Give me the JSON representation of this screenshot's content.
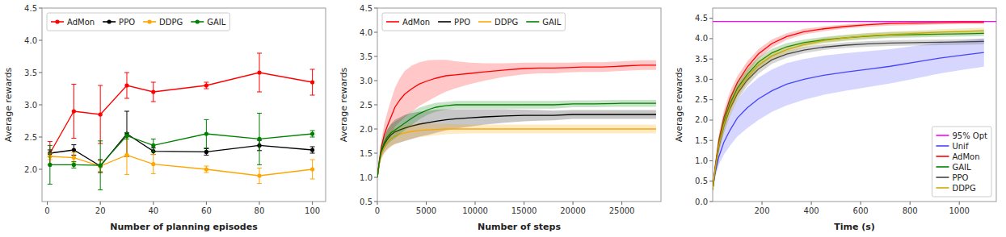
{
  "chart_data": [
    {
      "type": "errorbar",
      "xlabel": "Number of planning episodes",
      "ylabel": "Average rewards",
      "xlim": [
        -2,
        105
      ],
      "ylim": [
        1.5,
        4.5
      ],
      "xticks": [
        0,
        20,
        40,
        60,
        80,
        100
      ],
      "yticks": [
        {
          "value": 2.0,
          "label": "2.0"
        },
        2.5,
        {
          "value": 3.0,
          "label": "3.0"
        },
        3.5,
        {
          "value": 4.0,
          "label": "4.0"
        },
        4.5
      ],
      "grid": false,
      "legend": "upper left",
      "series": [
        {
          "name": "AdMon",
          "color": "red",
          "marker": "circle",
          "x": [
            1,
            10,
            20,
            30,
            40,
            60,
            80,
            100
          ],
          "values": [
            2.25,
            2.9,
            2.85,
            3.3,
            3.2,
            3.3,
            3.5,
            3.35
          ],
          "yerr": [
            0.18,
            0.42,
            0.45,
            0.2,
            0.15,
            0.05,
            0.3,
            0.2
          ]
        },
        {
          "name": "PPO",
          "color": "black",
          "marker": "circle",
          "x": [
            1,
            10,
            20,
            30,
            40,
            60,
            80,
            100
          ],
          "values": [
            2.25,
            2.3,
            2.05,
            2.55,
            2.28,
            2.27,
            2.37,
            2.3
          ],
          "yerr": [
            0.05,
            0.08,
            0.1,
            0.35,
            0.05,
            0.05,
            0.08,
            0.05
          ]
        },
        {
          "name": "DDPG",
          "color": "orange",
          "marker": "circle",
          "x": [
            1,
            10,
            20,
            30,
            40,
            60,
            80,
            100
          ],
          "values": [
            2.2,
            2.18,
            2.05,
            2.22,
            2.08,
            2.0,
            1.9,
            2.0
          ],
          "yerr": [
            0.05,
            0.08,
            0.08,
            0.3,
            0.15,
            0.05,
            0.12,
            0.15
          ]
        },
        {
          "name": "GAIL",
          "color": "green",
          "marker": "circle",
          "x": [
            1,
            10,
            20,
            30,
            40,
            60,
            80,
            100
          ],
          "values": [
            2.07,
            2.07,
            2.06,
            2.52,
            2.37,
            2.55,
            2.47,
            2.55
          ],
          "yerr": [
            0.3,
            0.05,
            0.38,
            0.05,
            0.1,
            0.22,
            0.4,
            0.05
          ]
        }
      ]
    },
    {
      "type": "line",
      "xlabel": "Number of steps",
      "ylabel": "Average rewards",
      "xlim": [
        0,
        29000
      ],
      "ylim": [
        0.5,
        4.5
      ],
      "xticks": [
        0,
        5000,
        10000,
        15000,
        20000,
        25000
      ],
      "yticks": [
        0.5,
        {
          "value": 1.0,
          "label": "1.0"
        },
        1.5,
        {
          "value": 2.0,
          "label": "2.0"
        },
        2.5,
        {
          "value": 3.0,
          "label": "3.0"
        },
        3.5,
        {
          "value": 4.0,
          "label": "4.0"
        },
        4.5
      ],
      "grid": false,
      "legend": "upper left",
      "series": [
        {
          "name": "AdMon",
          "color": "red",
          "x": [
            0,
            200,
            400,
            700,
            1000,
            1400,
            1800,
            2300,
            2800,
            3500,
            4300,
            5200,
            6000,
            7000,
            8000,
            9500,
            11000,
            13000,
            15000,
            16500,
            18000,
            19500,
            21000,
            22000,
            23000,
            25000,
            27000,
            28500
          ],
          "values": [
            1.0,
            1.35,
            1.62,
            1.88,
            2.05,
            2.25,
            2.45,
            2.6,
            2.72,
            2.83,
            2.93,
            3.0,
            3.05,
            3.1,
            3.12,
            3.15,
            3.18,
            3.22,
            3.25,
            3.26,
            3.26,
            3.27,
            3.28,
            3.28,
            3.28,
            3.3,
            3.32,
            3.32
          ],
          "yerr": [
            0.02,
            0.08,
            0.14,
            0.22,
            0.28,
            0.35,
            0.4,
            0.45,
            0.48,
            0.48,
            0.45,
            0.42,
            0.38,
            0.33,
            0.28,
            0.22,
            0.18,
            0.14,
            0.12,
            0.11,
            0.11,
            0.1,
            0.1,
            0.1,
            0.1,
            0.1,
            0.1,
            0.1
          ]
        },
        {
          "name": "PPO",
          "color": "black",
          "x": [
            0,
            200,
            400,
            700,
            1000,
            1400,
            1800,
            2300,
            2800,
            3500,
            4300,
            5200,
            6000,
            7000,
            8000,
            9500,
            11000,
            13000,
            15000,
            16500,
            18000,
            20000,
            21000,
            22500,
            23500,
            25000,
            27000,
            28500
          ],
          "values": [
            1.0,
            1.3,
            1.52,
            1.68,
            1.78,
            1.88,
            1.94,
            1.98,
            2.02,
            2.06,
            2.1,
            2.13,
            2.16,
            2.19,
            2.21,
            2.23,
            2.25,
            2.27,
            2.28,
            2.28,
            2.28,
            2.3,
            2.3,
            2.3,
            2.3,
            2.3,
            2.3,
            2.3
          ],
          "yerr": [
            0.02,
            0.07,
            0.12,
            0.17,
            0.2,
            0.23,
            0.25,
            0.26,
            0.27,
            0.27,
            0.26,
            0.25,
            0.24,
            0.22,
            0.2,
            0.18,
            0.16,
            0.14,
            0.12,
            0.11,
            0.1,
            0.09,
            0.09,
            0.09,
            0.09,
            0.09,
            0.09,
            0.09
          ]
        },
        {
          "name": "DDPG",
          "color": "orange",
          "x": [
            0,
            200,
            400,
            700,
            1000,
            1400,
            1800,
            2300,
            2800,
            3500,
            4300,
            5200,
            6000,
            7000,
            8000,
            9500,
            11000,
            13000,
            15000,
            17000,
            20000,
            23000,
            25000,
            28500
          ],
          "values": [
            1.0,
            1.28,
            1.48,
            1.62,
            1.72,
            1.8,
            1.85,
            1.89,
            1.92,
            1.95,
            1.97,
            1.98,
            1.99,
            2.0,
            2.0,
            2.0,
            2.0,
            2.0,
            2.0,
            2.0,
            2.0,
            2.0,
            2.0,
            2.0
          ],
          "yerr": [
            0.02,
            0.07,
            0.11,
            0.14,
            0.16,
            0.17,
            0.17,
            0.17,
            0.16,
            0.15,
            0.14,
            0.13,
            0.12,
            0.11,
            0.1,
            0.09,
            0.09,
            0.09,
            0.09,
            0.09,
            0.09,
            0.09,
            0.09,
            0.09
          ]
        },
        {
          "name": "GAIL",
          "color": "green",
          "x": [
            0,
            200,
            400,
            700,
            1000,
            1400,
            1800,
            2300,
            2800,
            3500,
            4300,
            5200,
            6000,
            7000,
            8000,
            9500,
            11000,
            13000,
            15000,
            16500,
            18000,
            20000,
            22000,
            25000,
            28500
          ],
          "values": [
            1.0,
            1.32,
            1.55,
            1.72,
            1.83,
            1.92,
            1.98,
            2.05,
            2.12,
            2.22,
            2.32,
            2.4,
            2.45,
            2.48,
            2.5,
            2.5,
            2.5,
            2.5,
            2.5,
            2.5,
            2.5,
            2.52,
            2.52,
            2.53,
            2.53
          ],
          "yerr": [
            0.02,
            0.07,
            0.11,
            0.14,
            0.16,
            0.17,
            0.17,
            0.16,
            0.15,
            0.14,
            0.12,
            0.1,
            0.09,
            0.08,
            0.08,
            0.08,
            0.08,
            0.08,
            0.08,
            0.08,
            0.08,
            0.07,
            0.07,
            0.07,
            0.07
          ]
        }
      ]
    },
    {
      "type": "line",
      "xlabel": "Time (s)",
      "ylabel": "Average rewards",
      "xlim": [
        0,
        1150
      ],
      "ylim": [
        0.0,
        4.75
      ],
      "xticks": [
        200,
        400,
        600,
        800,
        1000
      ],
      "yticks": [
        {
          "value": 0.0,
          "label": "0.0"
        },
        0.5,
        {
          "value": 1.0,
          "label": "1.0"
        },
        1.5,
        {
          "value": 2.0,
          "label": "2.0"
        },
        2.5,
        {
          "value": 3.0,
          "label": "3.0"
        },
        3.5,
        {
          "value": 4.0,
          "label": "4.0"
        },
        4.5
      ],
      "grid": false,
      "legend": "lower right",
      "series": [
        {
          "name": "95% Opt",
          "color": "#ff00ff",
          "x": [
            0,
            1150
          ],
          "values": [
            4.42,
            4.42
          ]
        },
        {
          "name": "Unif",
          "color": "#4444ff",
          "x": [
            0,
            10,
            25,
            45,
            70,
            100,
            140,
            185,
            240,
            300,
            370,
            450,
            540,
            630,
            720,
            820,
            920,
            1020,
            1100
          ],
          "values": [
            0.3,
            0.7,
            1.1,
            1.45,
            1.75,
            2.05,
            2.3,
            2.52,
            2.72,
            2.88,
            3.0,
            3.1,
            3.18,
            3.25,
            3.32,
            3.42,
            3.52,
            3.6,
            3.66
          ],
          "yerr": [
            0.05,
            0.12,
            0.2,
            0.3,
            0.38,
            0.45,
            0.5,
            0.52,
            0.52,
            0.52,
            0.5,
            0.48,
            0.46,
            0.44,
            0.42,
            0.4,
            0.38,
            0.36,
            0.35
          ]
        },
        {
          "name": "AdMon",
          "color": "red",
          "x": [
            0,
            10,
            25,
            45,
            70,
            100,
            140,
            185,
            240,
            300,
            370,
            450,
            540,
            630,
            720,
            820,
            920,
            1020,
            1100
          ],
          "values": [
            0.3,
            0.85,
            1.5,
            2.05,
            2.52,
            2.92,
            3.3,
            3.62,
            3.88,
            4.05,
            4.17,
            4.24,
            4.3,
            4.34,
            4.37,
            4.38,
            4.39,
            4.4,
            4.4
          ],
          "yerr": [
            0.05,
            0.1,
            0.15,
            0.18,
            0.18,
            0.16,
            0.14,
            0.12,
            0.1,
            0.08,
            0.07,
            0.06,
            0.05,
            0.05,
            0.05,
            0.05,
            0.04,
            0.04,
            0.04
          ]
        },
        {
          "name": "GAIL",
          "color": "green",
          "x": [
            0,
            10,
            25,
            45,
            70,
            100,
            140,
            185,
            240,
            300,
            370,
            450,
            540,
            630,
            720,
            820,
            920,
            1020,
            1100
          ],
          "values": [
            0.3,
            0.8,
            1.42,
            1.95,
            2.4,
            2.78,
            3.12,
            3.42,
            3.65,
            3.8,
            3.9,
            3.97,
            4.02,
            4.06,
            4.09,
            4.1,
            4.11,
            4.12,
            4.13
          ],
          "yerr": [
            0.05,
            0.1,
            0.15,
            0.18,
            0.18,
            0.16,
            0.14,
            0.12,
            0.1,
            0.09,
            0.08,
            0.07,
            0.07,
            0.07,
            0.07,
            0.07,
            0.07,
            0.07,
            0.07
          ]
        },
        {
          "name": "PPO",
          "color": "#444444",
          "x": [
            0,
            10,
            25,
            45,
            70,
            100,
            140,
            185,
            240,
            300,
            370,
            450,
            540,
            630,
            720,
            820,
            920,
            1020,
            1100
          ],
          "values": [
            0.3,
            0.75,
            1.35,
            1.85,
            2.28,
            2.65,
            2.98,
            3.25,
            3.48,
            3.62,
            3.72,
            3.79,
            3.84,
            3.87,
            3.89,
            3.9,
            3.91,
            3.92,
            3.93
          ],
          "yerr": [
            0.05,
            0.1,
            0.15,
            0.18,
            0.18,
            0.16,
            0.14,
            0.12,
            0.1,
            0.09,
            0.08,
            0.07,
            0.07,
            0.07,
            0.07,
            0.07,
            0.07,
            0.07,
            0.07
          ]
        },
        {
          "name": "DDPG",
          "color": "#ccaa00",
          "x": [
            0,
            10,
            25,
            45,
            70,
            100,
            140,
            185,
            240,
            300,
            370,
            450,
            540,
            630,
            720,
            820,
            920,
            1020,
            1100
          ],
          "values": [
            0.3,
            0.78,
            1.38,
            1.88,
            2.32,
            2.7,
            3.05,
            3.35,
            3.58,
            3.73,
            3.85,
            3.95,
            4.02,
            4.07,
            4.1,
            4.13,
            4.16,
            4.18,
            4.2
          ],
          "yerr": [
            0.05,
            0.1,
            0.15,
            0.18,
            0.18,
            0.16,
            0.14,
            0.12,
            0.1,
            0.09,
            0.08,
            0.07,
            0.07,
            0.07,
            0.07,
            0.07,
            0.07,
            0.07,
            0.07
          ]
        }
      ]
    }
  ]
}
